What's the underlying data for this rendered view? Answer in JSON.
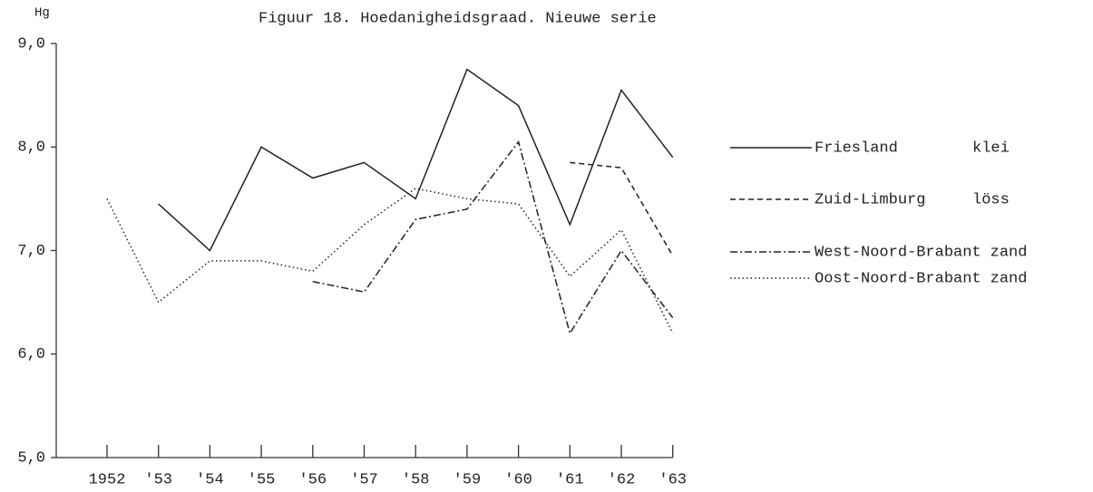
{
  "chart_data": {
    "type": "line",
    "title": "Figuur 18. Hoedanigheidsgraad. Nieuwe serie",
    "y_label": "Hg",
    "categories": [
      "1952",
      "'53",
      "'54",
      "'55",
      "'56",
      "'57",
      "'58",
      "'59",
      "'60",
      "'61",
      "'62",
      "'63"
    ],
    "ylim": [
      5,
      9
    ],
    "yticks": [
      {
        "value": 5,
        "label": "5,0"
      },
      {
        "value": 6,
        "label": "6,0"
      },
      {
        "value": 7,
        "label": "7,0"
      },
      {
        "value": 8,
        "label": "8,0"
      },
      {
        "value": 9,
        "label": "9,0"
      }
    ],
    "series": [
      {
        "name": "Friesland",
        "soil": "klei",
        "color": "#222222",
        "dash": "solid",
        "values": [
          null,
          7.45,
          7.0,
          8.0,
          7.7,
          7.85,
          7.5,
          8.75,
          8.4,
          7.25,
          8.55,
          7.9
        ]
      },
      {
        "name": "Zuid-Limburg",
        "soil": "löss",
        "color": "#222222",
        "dash": "dashed",
        "values": [
          null,
          null,
          null,
          null,
          null,
          null,
          null,
          null,
          null,
          7.85,
          7.8,
          6.95
        ]
      },
      {
        "name": "West-Noord-Brabant",
        "soil": "zand",
        "color": "#222222",
        "dash": "dashdot",
        "values": [
          null,
          null,
          null,
          null,
          6.7,
          6.6,
          7.3,
          7.4,
          8.05,
          6.2,
          7.0,
          6.35
        ]
      },
      {
        "name": "Oost-Noord-Brabant",
        "soil": "zand",
        "color": "#222222",
        "dash": "dotted",
        "values": [
          7.5,
          6.5,
          6.9,
          6.9,
          6.8,
          7.25,
          7.6,
          7.5,
          7.45,
          6.75,
          7.2,
          6.2
        ]
      }
    ]
  }
}
